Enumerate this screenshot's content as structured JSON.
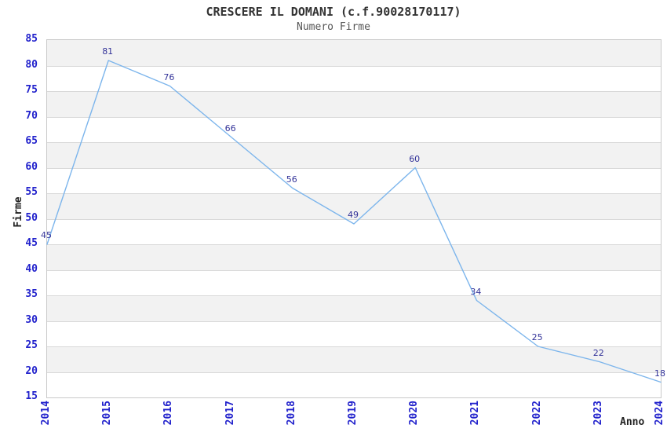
{
  "chart_data": {
    "type": "line",
    "title": "CRESCERE IL DOMANI (c.f.90028170117)",
    "subtitle": "Numero Firme",
    "xlabel": "Anno",
    "ylabel": "Firme",
    "categories": [
      "2014",
      "2015",
      "2016",
      "2017",
      "2018",
      "2019",
      "2020",
      "2021",
      "2022",
      "2023",
      "2024"
    ],
    "series": [
      {
        "name": "Numero Firme",
        "values": [
          45,
          81,
          76,
          66,
          56,
          49,
          60,
          34,
          25,
          22,
          18
        ]
      }
    ],
    "ylim": [
      15,
      85
    ],
    "ytick_step": 5,
    "grid": true,
    "legend": "none",
    "band_fill": "alternating horizontal bands per 5-unit interval, gray on top interval",
    "colors": {
      "line": "#7cb5ec",
      "tick_label": "#2222cc",
      "data_label": "#333399",
      "band": "#f2f2f2",
      "gridline": "#d9d9d9",
      "plot_border": "#c9c9c9",
      "title": "#333333",
      "subtitle": "#555555",
      "axis_title": "#222222"
    }
  }
}
